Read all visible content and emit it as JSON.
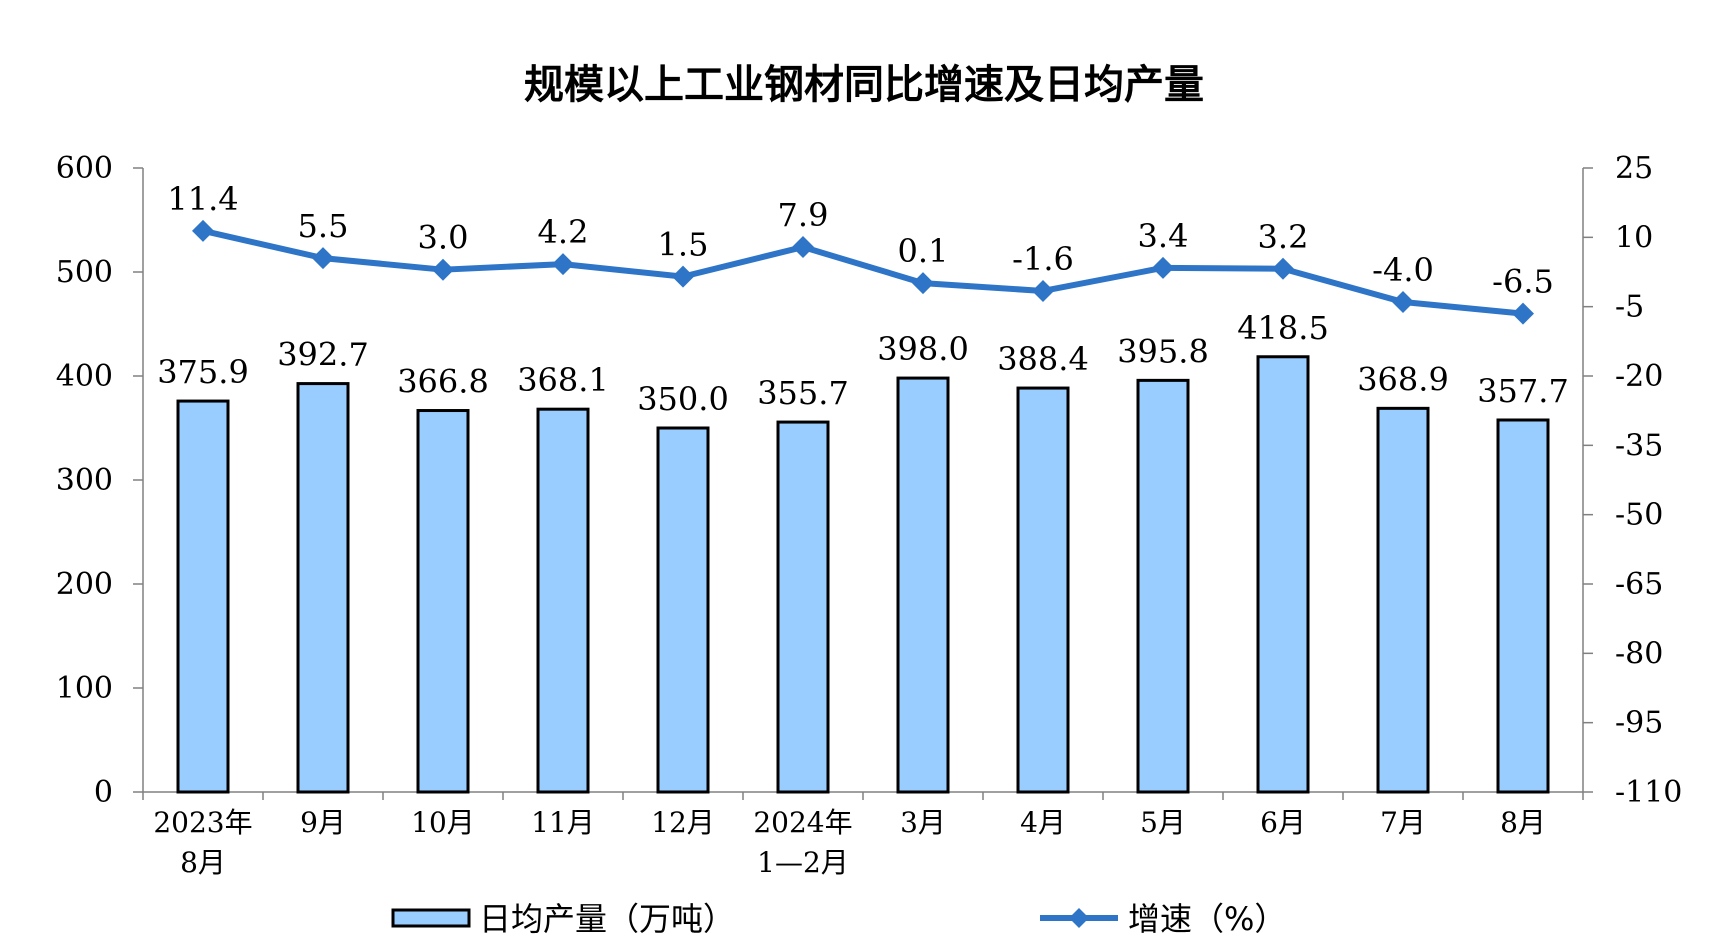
{
  "chart_data": {
    "type": "bar",
    "title": "规模以上工业钢材同比增速及日均产量",
    "categories": [
      [
        "2023年",
        "8月"
      ],
      [
        "9月"
      ],
      [
        "10月"
      ],
      [
        "11月"
      ],
      [
        "12月"
      ],
      [
        "2024年",
        "1—2月"
      ],
      [
        "3月"
      ],
      [
        "4月"
      ],
      [
        "5月"
      ],
      [
        "6月"
      ],
      [
        "7月"
      ],
      [
        "8月"
      ]
    ],
    "series": [
      {
        "name": "日均产量（万吨）",
        "type": "bar",
        "axis": "left",
        "color": "#99CCFF",
        "values": [
          375.9,
          392.7,
          366.8,
          368.1,
          350.0,
          355.7,
          398.0,
          388.4,
          395.8,
          418.5,
          368.9,
          357.7
        ],
        "labels": [
          "375.9",
          "392.7",
          "366.8",
          "368.1",
          "350.0",
          "355.7",
          "398.0",
          "388.4",
          "395.8",
          "418.5",
          "368.9",
          "357.7"
        ]
      },
      {
        "name": "增速（%）",
        "type": "line",
        "axis": "right",
        "color": "#2E75C8",
        "marker": "diamond",
        "values": [
          11.4,
          5.5,
          3.0,
          4.2,
          1.5,
          7.9,
          0.1,
          -1.6,
          3.4,
          3.2,
          -4.0,
          -6.5
        ],
        "labels": [
          "11.4",
          "5.5",
          "3.0",
          "4.2",
          "1.5",
          "7.9",
          "0.1",
          "-1.6",
          "3.4",
          "3.2",
          "-4.0",
          "-6.5"
        ]
      }
    ],
    "y_left": {
      "min": 0,
      "max": 600,
      "ticks": [
        "0",
        "100",
        "200",
        "300",
        "400",
        "500",
        "600"
      ]
    },
    "y_right": {
      "min": -110,
      "max": 25,
      "ticks": [
        "-110",
        "-95",
        "-80",
        "-65",
        "-50",
        "-35",
        "-20",
        "-5",
        "10",
        "25"
      ]
    },
    "grid": false,
    "legend_position": "bottom"
  }
}
